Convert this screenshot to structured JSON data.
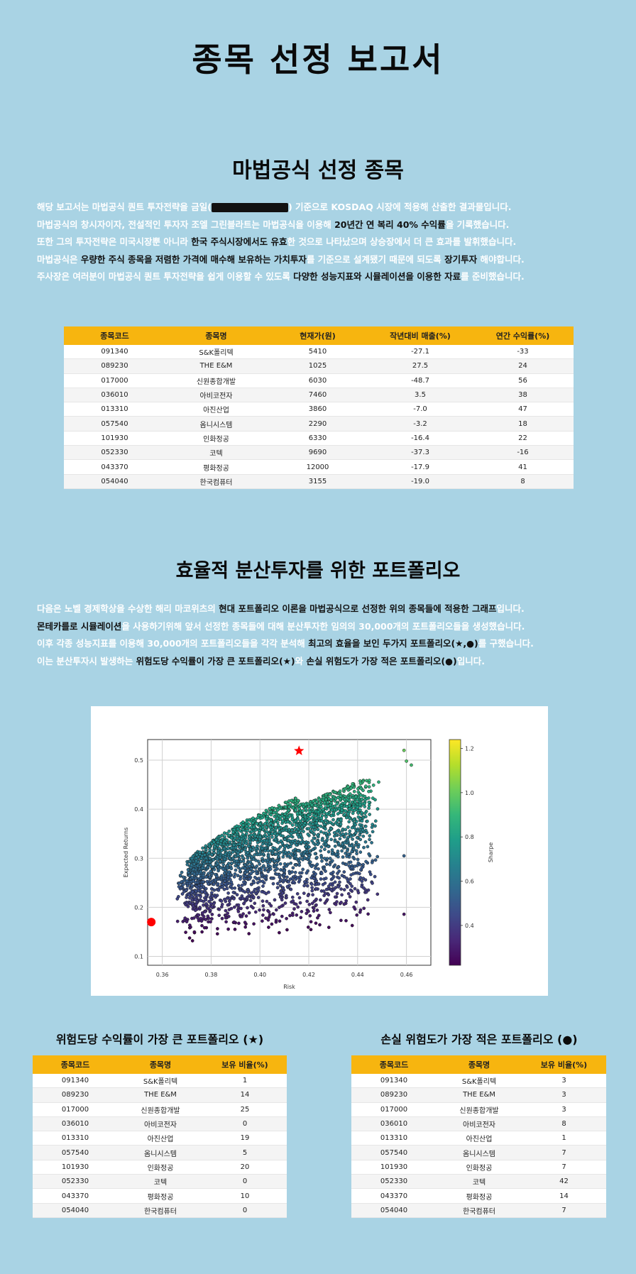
{
  "page": {
    "title": "종목 선정 보고서"
  },
  "section1": {
    "title": "마법공식 선정 종목",
    "lines": [
      {
        "a": "해당 보고서는 마법공식 퀀트 투자전략을 금일(",
        "b": ") 기준으로 KOSDAQ 시장에 적용해 산출한 결과물입니다."
      },
      {
        "a": "마법공식의 창시자이자, 전설적인 투자자 조엘 그린블라트는 마법공식을 이용해 ",
        "h": "20년간 연 복리 40% 수익률",
        "b": "을 기록했습니다."
      },
      {
        "a": "또한 그의 투자전략은 미국시장뿐 아니라 ",
        "h": "한국 주식시장에서도 유효",
        "b": "한 것으로 나타났으며 상승장에서 더 큰 효과를 발휘했습니다."
      },
      {
        "a": "마법공식은 ",
        "h": "우량한 주식 종목을 저렴한 가격에 매수해 보유하는 가치투자",
        "b": "를 기준으로 설계됐기 때문에 되도록 ",
        "h2": "장기투자",
        "c": " 해야합니다."
      },
      {
        "a": "주사장은 여러분이 마법공식 퀀트 투자전략을 쉽게 이용할 수 있도록 ",
        "h": "다양한 성능지표와 시뮬레이션을 이용한 자료",
        "b": "를 준비했습니다."
      }
    ],
    "table": {
      "headers": [
        "종목코드",
        "종목명",
        "현재가(원)",
        "작년대비 매출(%)",
        "연간 수익률(%)"
      ],
      "rows": [
        [
          "091340",
          "S&K폴리텍",
          "5410",
          "-27.1",
          "-33"
        ],
        [
          "089230",
          "THE E&M",
          "1025",
          "27.5",
          "24"
        ],
        [
          "017000",
          "신원종합개발",
          "6030",
          "-48.7",
          "56"
        ],
        [
          "036010",
          "아비코전자",
          "7460",
          "3.5",
          "38"
        ],
        [
          "013310",
          "아진산업",
          "3860",
          "-7.0",
          "47"
        ],
        [
          "057540",
          "옴니시스템",
          "2290",
          "-3.2",
          "18"
        ],
        [
          "101930",
          "인화정공",
          "6330",
          "-16.4",
          "22"
        ],
        [
          "052330",
          "코텍",
          "9690",
          "-37.3",
          "-16"
        ],
        [
          "043370",
          "평화정공",
          "12000",
          "-17.9",
          "41"
        ],
        [
          "054040",
          "한국컴퓨터",
          "3155",
          "-19.0",
          "8"
        ]
      ]
    }
  },
  "section2": {
    "title": "효율적 분산투자를 위한 포트폴리오",
    "lines": [
      {
        "a": "다음은 노벨 경제학상을 수상한 해리 마코위츠의 ",
        "h": "현대 포트폴리오 이론을 마법공식으로 선정한 위의 종목들에 적용한 그래프",
        "b": "입니다."
      },
      {
        "a": "",
        "h": "몬테카를로 시뮬레이션",
        "b": "을 사용하기위해 앞서 선정한 종목들에 대해 분산투자한 임의의 30,000개의 포트폴리오들을 생성했습니다."
      },
      {
        "a": "이후 각종 성능지표를 이용해 30,000개의 포트폴리오들을 각각 분석해 ",
        "h": "최고의 효율을 보인 두가지 포트폴리오(★,●)",
        "b": "를 구했습니다."
      },
      {
        "a": "이는 분산투자시 발생하는 ",
        "h": "위험도당 수익률이 가장 큰 포트폴리오(★)",
        "b": "와 ",
        "h2": "손실 위험도가 가장 적은 포트폴리오(●)",
        "c": "입니다."
      }
    ]
  },
  "chart_data": {
    "type": "scatter",
    "xlabel": "Risk",
    "ylabel": "Expected Returns",
    "colorbar_label": "Sharpe",
    "xlim": [
      0.354,
      0.47
    ],
    "ylim": [
      0.082,
      0.542
    ],
    "xticks": [
      "0.36",
      "0.38",
      "0.40",
      "0.42",
      "0.44",
      "0.46"
    ],
    "yticks": [
      "0.1",
      "0.2",
      "0.3",
      "0.4",
      "0.5"
    ],
    "colorbar_ticks": [
      "0.4",
      "0.6",
      "0.8",
      "1.0",
      "1.2"
    ],
    "colorbar_range": [
      0.22,
      1.24
    ],
    "colormap": "viridis",
    "grid": true,
    "n_portfolios_rendered": 2600,
    "max_sharpe_portfolio": {
      "risk": 0.416,
      "return": 0.519,
      "marker": "star",
      "color": "#ff0000"
    },
    "min_risk_portfolio": {
      "risk": 0.3555,
      "return": 0.17,
      "marker": "circle",
      "color": "#ff0000"
    },
    "cloud_shape": "efficient frontier cloud rising from lower-left to upper-right"
  },
  "left_table": {
    "title": "위험도당 수익률이 가장 큰 포트폴리오 (★)",
    "headers": [
      "종목코드",
      "종목명",
      "보유 비율(%)"
    ],
    "rows": [
      [
        "091340",
        "S&K폴리텍",
        "1"
      ],
      [
        "089230",
        "THE E&M",
        "14"
      ],
      [
        "017000",
        "신원종합개발",
        "25"
      ],
      [
        "036010",
        "아비코전자",
        "0"
      ],
      [
        "013310",
        "아진산업",
        "19"
      ],
      [
        "057540",
        "옴니시스템",
        "5"
      ],
      [
        "101930",
        "인화정공",
        "20"
      ],
      [
        "052330",
        "코텍",
        "0"
      ],
      [
        "043370",
        "평화정공",
        "10"
      ],
      [
        "054040",
        "한국컴퓨터",
        "0"
      ]
    ]
  },
  "right_table": {
    "title": "손실 위험도가 가장 적은 포트폴리오 (●)",
    "headers": [
      "종목코드",
      "종목명",
      "보유 비율(%)"
    ],
    "rows": [
      [
        "091340",
        "S&K폴리텍",
        "3"
      ],
      [
        "089230",
        "THE E&M",
        "3"
      ],
      [
        "017000",
        "신원종합개발",
        "3"
      ],
      [
        "036010",
        "아비코전자",
        "8"
      ],
      [
        "013310",
        "아진산업",
        "1"
      ],
      [
        "057540",
        "옴니시스템",
        "7"
      ],
      [
        "101930",
        "인화정공",
        "7"
      ],
      [
        "052330",
        "코텍",
        "42"
      ],
      [
        "043370",
        "평화정공",
        "14"
      ],
      [
        "054040",
        "한국컴퓨터",
        "7"
      ]
    ]
  }
}
